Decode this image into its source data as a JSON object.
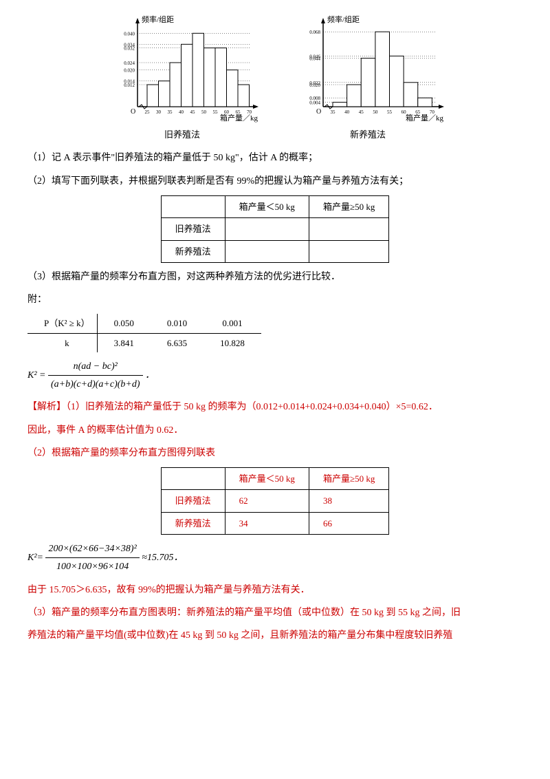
{
  "charts": {
    "left": {
      "y_label": "频率/组距",
      "x_label": "箱产量／kg",
      "caption": "旧养殖法",
      "y_ticks": [
        "0.012",
        "0.014",
        "0.020",
        "0.024",
        "0.032",
        "0.034",
        "0.040"
      ],
      "x_ticks": [
        "25",
        "30",
        "35",
        "40",
        "45",
        "50",
        "55",
        "60",
        "65",
        "70"
      ],
      "bars": [
        0.012,
        0.014,
        0.024,
        0.034,
        0.04,
        0.032,
        0.032,
        0.02,
        0.012
      ],
      "bar_color": "#ffffff",
      "line_color": "#000000"
    },
    "right": {
      "y_label": "频率/组距",
      "x_label": "箱产量／kg",
      "caption": "新养殖法",
      "y_ticks": [
        "0.004",
        "0.008",
        "0.020",
        "0.022",
        "0.044",
        "0.046",
        "0.068"
      ],
      "x_ticks": [
        "35",
        "40",
        "45",
        "50",
        "55",
        "60",
        "65",
        "70"
      ],
      "bars": [
        0.004,
        0.02,
        0.044,
        0.068,
        0.046,
        0.022,
        0.008
      ],
      "bar_color": "#ffffff",
      "line_color": "#000000"
    }
  },
  "q1": "（1）记 A 表示事件\"旧养殖法的箱产量低于 50 kg\"，估计 A 的概率；",
  "q2": "（2）填写下面列联表，并根据列联表判断是否有 99%的把握认为箱产量与养殖方法有关；",
  "table1": {
    "col1": "箱产量＜50 kg",
    "col2": "箱产量≥50 kg",
    "row1": "旧养殖法",
    "row2": "新养殖法"
  },
  "q3": "（3）根据箱产量的频率分布直方图，对这两种养殖方法的优劣进行比较．",
  "append_label": "附：",
  "append_table": {
    "p_label": "P（K² ≥ k）",
    "k_label": "k",
    "p": [
      "0.050",
      "0.010",
      "0.001"
    ],
    "k": [
      "3.841",
      "6.635",
      "10.828"
    ]
  },
  "k2_formula": {
    "lhs": "K² =",
    "num": "n(ad − bc)²",
    "den": "(a+b)(c+d)(a+c)(b+d)",
    "tail": "．"
  },
  "sol1_a": "【解析】（1）旧养殖法的箱产量低于 50 kg 的频率为（0.012+0.014+0.024+0.034+0.040）×5=0.62．",
  "sol1_b": "因此，事件 A 的概率估计值为 0.62．",
  "sol2_head": "（2）根据箱产量的频率分布直方图得列联表",
  "table2": {
    "col1": "箱产量＜50 kg",
    "col2": "箱产量≥50 kg",
    "row1_lbl": "旧养殖法",
    "row1_v1": "62",
    "row1_v2": "38",
    "row2_lbl": "新养殖法",
    "row2_v1": "34",
    "row2_v2": "66"
  },
  "k2_calc": {
    "lhs": "K²=",
    "num": "200×(62×66−34×38)²",
    "den": "100×100×96×104",
    "tail": "≈15.705．"
  },
  "sol2_conc": "由于 15.705＞6.635，故有 99%的把握认为箱产量与养殖方法有关．",
  "sol3_a": "（3）箱产量的频率分布直方图表明：新养殖法的箱产量平均值（或中位数）在 50 kg 到 55 kg 之间，旧",
  "sol3_b": "养殖法的箱产量平均值(或中位数)在 45  kg 到 50  kg 之间，且新养殖法的箱产量分布集中程度较旧养殖"
}
